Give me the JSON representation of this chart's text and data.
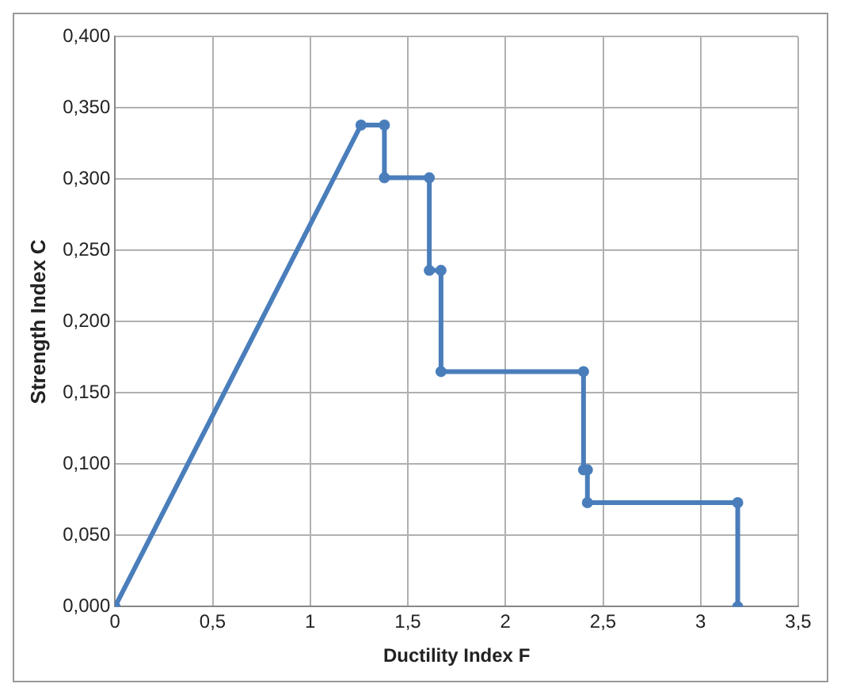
{
  "chart_data": {
    "type": "line",
    "xlabel": "Ductility Index F",
    "ylabel": "Strength Index C",
    "series": [
      {
        "color": "#4a7ebb",
        "x": [
          0,
          1.26,
          1.38,
          1.38,
          1.61,
          1.61,
          1.67,
          1.67,
          2.4,
          2.4,
          2.42,
          2.42,
          3.19,
          3.19
        ],
        "values": [
          0,
          0.338,
          0.338,
          0.301,
          0.301,
          0.236,
          0.236,
          0.165,
          0.165,
          0.096,
          0.096,
          0.073,
          0.073,
          0
        ]
      }
    ],
    "xlim": [
      0,
      3.5
    ],
    "xticks": [
      {
        "value": 0,
        "label": "0"
      },
      {
        "value": 0.5,
        "label": "0,5"
      },
      {
        "value": 1,
        "label": "1"
      },
      {
        "value": 1.5,
        "label": "1,5"
      },
      {
        "value": 2,
        "label": "2"
      },
      {
        "value": 2.5,
        "label": "2,5"
      },
      {
        "value": 3,
        "label": "3"
      },
      {
        "value": 3.5,
        "label": "3,5"
      }
    ],
    "ylim": [
      0,
      0.4
    ],
    "yticks": [
      {
        "value": 0,
        "label": "0,000"
      },
      {
        "value": 0.05,
        "label": "0,050"
      },
      {
        "value": 0.1,
        "label": "0,100"
      },
      {
        "value": 0.15,
        "label": "0,150"
      },
      {
        "value": 0.2,
        "label": "0,200"
      },
      {
        "value": 0.25,
        "label": "0,250"
      },
      {
        "value": 0.3,
        "label": "0,300"
      },
      {
        "value": 0.35,
        "label": "0,350"
      },
      {
        "value": 0.4,
        "label": "0,400"
      }
    ],
    "grid": true,
    "legend": false,
    "marker": "circle",
    "line_style": "solid"
  }
}
